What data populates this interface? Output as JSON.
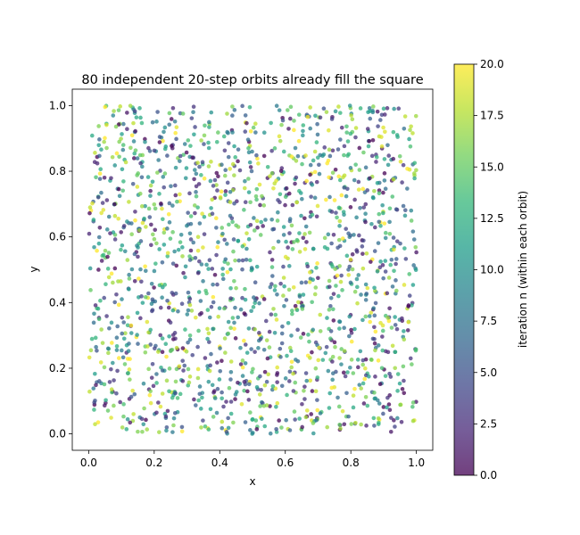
{
  "chart_data": {
    "type": "scatter",
    "title": "80 independent 20-step orbits already fill the square",
    "xlabel": "x",
    "ylabel": "y",
    "xlim": [
      -0.05,
      1.05
    ],
    "ylim": [
      -0.05,
      1.05
    ],
    "xticks": [
      "0.0",
      "0.2",
      "0.4",
      "0.6",
      "0.8",
      "1.0"
    ],
    "yticks": [
      "0.0",
      "0.2",
      "0.4",
      "0.6",
      "0.8",
      "1.0"
    ],
    "grid": false,
    "legend": "none",
    "n_orbits": 80,
    "steps_per_orbit": 21,
    "colormap": "viridis",
    "point_alpha": 0.75,
    "colorbar": {
      "label": "iteration n (within each orbit)",
      "range": [
        0.0,
        20.0
      ],
      "ticks": [
        "0.0",
        "2.5",
        "5.0",
        "7.5",
        "10.0",
        "12.5",
        "15.0",
        "17.5",
        "20.0"
      ],
      "colors": [
        "#440154",
        "#482878",
        "#3e4989",
        "#31688e",
        "#26828e",
        "#1f9e89",
        "#35b779",
        "#6ece58",
        "#b5de2b",
        "#fde725"
      ]
    }
  }
}
